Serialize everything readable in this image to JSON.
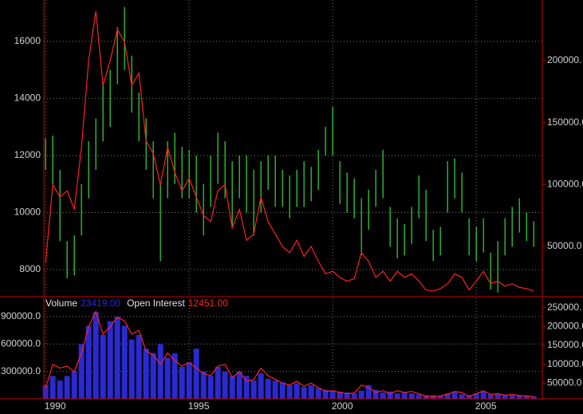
{
  "chart_data": [
    {
      "type": "ohlc",
      "x": [
        1990,
        1990.25,
        1990.5,
        1990.75,
        1991,
        1991.25,
        1991.5,
        1991.75,
        1992,
        1992.25,
        1992.5,
        1992.75,
        1993,
        1993.25,
        1993.5,
        1993.75,
        1994,
        1994.25,
        1994.5,
        1994.75,
        1995,
        1995.25,
        1995.5,
        1995.75,
        1996,
        1996.25,
        1996.5,
        1996.75,
        1997,
        1997.25,
        1997.5,
        1997.75,
        1998,
        1998.25,
        1998.5,
        1998.75,
        1999,
        1999.25,
        1999.5,
        1999.75,
        2000,
        2000.25,
        2000.5,
        2000.75,
        2001,
        2001.25,
        2001.5,
        2001.75,
        2002,
        2002.25,
        2002.5,
        2002.75,
        2003,
        2003.25,
        2003.5,
        2003.75,
        2004,
        2004.25,
        2004.5,
        2004.75,
        2005,
        2005.25,
        2005.5,
        2005.75,
        2006,
        2006.25,
        2006.5,
        2006.75,
        2007
      ],
      "highs": [
        12600,
        12700,
        11500,
        9000,
        9200,
        11000,
        12500,
        13300,
        14500,
        15000,
        16500,
        17200,
        15500,
        14200,
        13300,
        12500,
        11000,
        12500,
        12800,
        12300,
        12200,
        12000,
        11000,
        12000,
        12800,
        12500,
        11800,
        12000,
        12000,
        11500,
        11800,
        12000,
        12000,
        11500,
        11300,
        11500,
        11800,
        11600,
        12200,
        13000,
        13700,
        11800,
        11400,
        11200,
        10500,
        10800,
        11500,
        12200,
        10200,
        9800,
        9600,
        10200,
        11300,
        10800,
        9400,
        9500,
        11800,
        11900,
        11400,
        9800,
        9500,
        9800,
        8600,
        9000,
        9800,
        10200,
        10500,
        10000,
        9700
      ],
      "lows": [
        11500,
        11000,
        9000,
        7700,
        7800,
        9200,
        10500,
        11500,
        12500,
        13000,
        14500,
        15000,
        13500,
        12500,
        11500,
        10500,
        8300,
        10500,
        11000,
        10500,
        10500,
        10000,
        9200,
        10200,
        11000,
        10500,
        9500,
        10500,
        10000,
        9200,
        10000,
        10800,
        10200,
        10200,
        9800,
        10200,
        10200,
        10400,
        10800,
        12000,
        12000,
        10300,
        10000,
        9800,
        8500,
        9400,
        10200,
        10500,
        8800,
        8400,
        8500,
        8900,
        9800,
        9000,
        8300,
        8500,
        10000,
        10500,
        10000,
        8500,
        8300,
        8600,
        7300,
        7200,
        8500,
        8800,
        9300,
        9000,
        8800
      ],
      "color": "#33cc33",
      "line": {
        "color": "#ff2020",
        "axis": "y2",
        "values": [
          36500,
          100000,
          90000,
          95000,
          80000,
          130000,
          200000,
          240000,
          180000,
          200000,
          225000,
          215000,
          180000,
          190000,
          135000,
          125000,
          100000,
          130000,
          110000,
          95000,
          105000,
          90000,
          75000,
          70000,
          95000,
          100000,
          65000,
          80000,
          55000,
          60000,
          90000,
          70000,
          60000,
          50000,
          45000,
          55000,
          42000,
          50000,
          38000,
          28000,
          30000,
          25000,
          22000,
          24000,
          45000,
          38000,
          25000,
          30000,
          22000,
          30000,
          25000,
          28000,
          22000,
          15000,
          14000,
          16000,
          20000,
          28000,
          25000,
          15000,
          22000,
          30000,
          20000,
          22000,
          18000,
          20000,
          17000,
          16000,
          14000
        ]
      },
      "xlim": [
        1989.94,
        2007.3
      ],
      "xticks": [
        1990,
        1995,
        2000,
        2005
      ],
      "ylim": [
        7050,
        17450
      ],
      "yticks": [
        8000,
        10000,
        12000,
        14000,
        16000
      ],
      "y2lim": [
        9440,
        248900
      ],
      "y2ticks": [
        {
          "value": 50000,
          "label": "50000.0"
        },
        {
          "value": 100000,
          "label": "100000.0"
        },
        {
          "value": 150000,
          "label": "150000.0"
        },
        {
          "value": 200000,
          "label": "200000."
        }
      ],
      "grid": true
    },
    {
      "type": "bar",
      "x": [
        1990,
        1990.25,
        1990.5,
        1990.75,
        1991,
        1991.25,
        1991.5,
        1991.75,
        1992,
        1992.25,
        1992.5,
        1992.75,
        1993,
        1993.25,
        1993.5,
        1993.75,
        1994,
        1994.25,
        1994.5,
        1994.75,
        1995,
        1995.25,
        1995.5,
        1995.75,
        1996,
        1996.25,
        1996.5,
        1996.75,
        1997,
        1997.25,
        1997.5,
        1997.75,
        1998,
        1998.25,
        1998.5,
        1998.75,
        1999,
        1999.25,
        1999.5,
        1999.75,
        2000,
        2000.25,
        2000.5,
        2000.75,
        2001,
        2001.25,
        2001.5,
        2001.75,
        2002,
        2002.25,
        2002.5,
        2002.75,
        2003,
        2003.25,
        2003.5,
        2003.75,
        2004,
        2004.25,
        2004.5,
        2004.75,
        2005,
        2005.25,
        2005.5,
        2005.75,
        2006,
        2006.25,
        2006.5,
        2006.75,
        2007
      ],
      "series": [
        {
          "name": "Volume",
          "color": "#2a2ad0",
          "legend_value": "23419.00",
          "values": [
            150000,
            250000,
            200000,
            250000,
            300000,
            600000,
            800000,
            950000,
            700000,
            850000,
            900000,
            800000,
            650000,
            700000,
            550000,
            500000,
            600000,
            450000,
            500000,
            350000,
            400000,
            550000,
            300000,
            250000,
            350000,
            300000,
            250000,
            300000,
            250000,
            200000,
            280000,
            220000,
            200000,
            180000,
            150000,
            170000,
            130000,
            150000,
            120000,
            100000,
            90000,
            80000,
            70000,
            60000,
            90000,
            150000,
            100000,
            70000,
            80000,
            60000,
            70000,
            60000,
            50000,
            40000,
            40000,
            30000,
            60000,
            80000,
            50000,
            40000,
            60000,
            80000,
            50000,
            50000,
            40000,
            40000,
            35000,
            30000,
            30000
          ]
        },
        {
          "name": "Open Interest",
          "color": "#ff2020",
          "axis": "y2",
          "legend_value": "12451.00",
          "values": [
            36500,
            100000,
            90000,
            95000,
            80000,
            130000,
            200000,
            240000,
            180000,
            200000,
            225000,
            215000,
            180000,
            190000,
            135000,
            125000,
            100000,
            130000,
            110000,
            95000,
            105000,
            90000,
            75000,
            70000,
            95000,
            100000,
            65000,
            80000,
            55000,
            60000,
            90000,
            70000,
            60000,
            50000,
            45000,
            55000,
            42000,
            50000,
            38000,
            28000,
            30000,
            25000,
            22000,
            24000,
            45000,
            38000,
            25000,
            30000,
            22000,
            30000,
            25000,
            28000,
            22000,
            15000,
            14000,
            16000,
            20000,
            28000,
            25000,
            15000,
            22000,
            30000,
            20000,
            22000,
            18000,
            20000,
            17000,
            16000,
            14000
          ]
        }
      ],
      "xlim": [
        1989.94,
        2007.3
      ],
      "xticks": [
        1990,
        1995,
        2000,
        2005
      ],
      "ylim": [
        0,
        1100000
      ],
      "yticks": [
        {
          "value": 300000,
          "label": "300000.0"
        },
        {
          "value": 600000,
          "label": "600000.0"
        },
        {
          "value": 900000,
          "label": "900000.0"
        }
      ],
      "y2lim": [
        8333,
        275000
      ],
      "y2ticks": [
        {
          "value": 50000,
          "label": "50000.0"
        },
        {
          "value": 100000,
          "label": "100000.0"
        },
        {
          "value": 150000,
          "label": "150000.0"
        },
        {
          "value": 200000,
          "label": "200000.0"
        },
        {
          "value": 250000,
          "label": "250000."
        }
      ],
      "grid": true
    }
  ]
}
